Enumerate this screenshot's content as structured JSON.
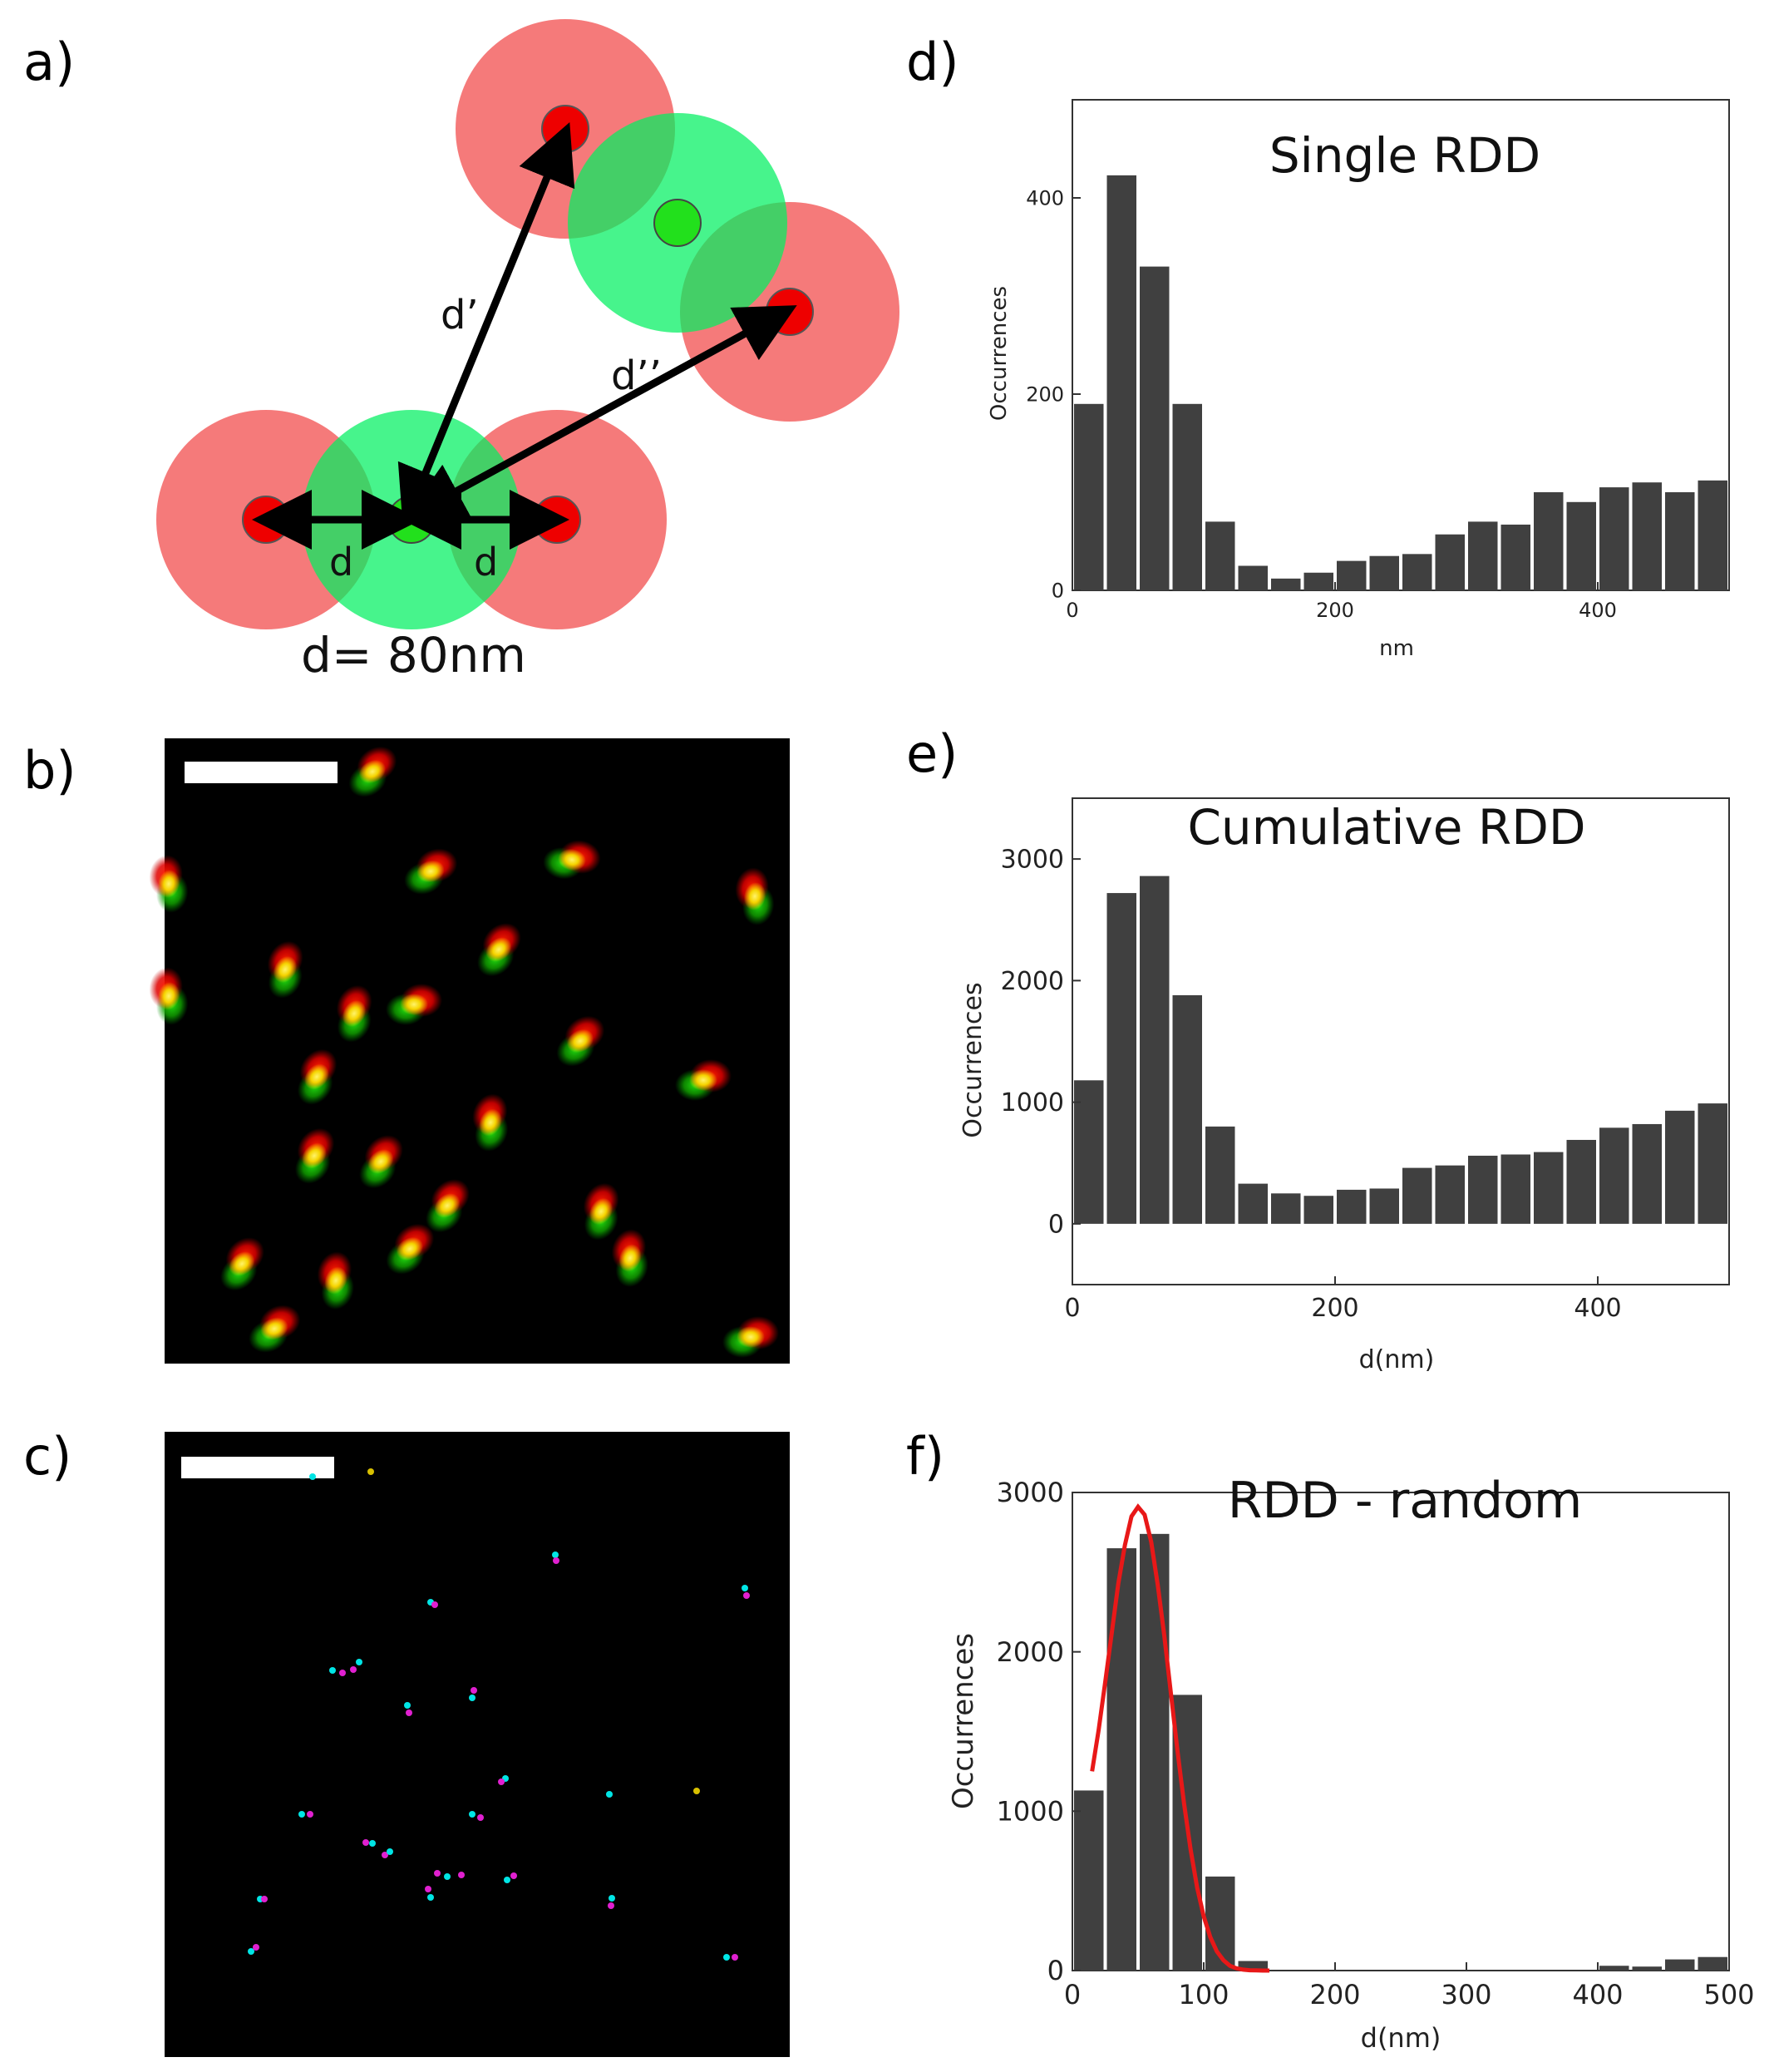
{
  "panel_labels": [
    "a)",
    "b)",
    "c)",
    "d)",
    "e)",
    "f)"
  ],
  "diagram": {
    "label_d_prime": "d’",
    "label_d_double_prime": "d’’",
    "label_d_left": "d",
    "label_d_right": "d",
    "caption": "d=  80nm",
    "colors": {
      "red_halo": "#f66e6e",
      "red_core": "#ee0000",
      "green_halo": "#11f56c",
      "green_core": "#22e01c",
      "arrow": "#000000"
    }
  },
  "micrographs": {
    "b": {
      "background": "#000000",
      "scale_bar_color": "#ffffff"
    },
    "c": {
      "background": "#000000",
      "scale_bar_color": "#ffffff",
      "dot_colors": [
        "#00e5e5",
        "#e020d0",
        "#d8c000"
      ]
    }
  },
  "chart_data": [
    {
      "panel": "d",
      "type": "bar",
      "title": "Single RDD",
      "xlabel": "nm",
      "ylabel": "Occurrences",
      "xlim": [
        0,
        500
      ],
      "ylim": [
        0,
        500
      ],
      "xticks": [
        "0",
        "200",
        "400"
      ],
      "yticks": [
        "0",
        "200",
        "400"
      ],
      "bin_width": 25,
      "bin_starts": [
        0,
        25,
        50,
        75,
        100,
        125,
        150,
        175,
        200,
        225,
        250,
        275,
        300,
        325,
        350,
        375,
        400,
        425,
        450,
        475
      ],
      "values": [
        190,
        423,
        330,
        190,
        70,
        25,
        12,
        18,
        30,
        35,
        37,
        57,
        70,
        67,
        100,
        90,
        105,
        110,
        100,
        112
      ],
      "bar_color": "#404040"
    },
    {
      "panel": "e",
      "type": "bar",
      "title": "Cumulative RDD",
      "xlabel": "d(nm)",
      "ylabel": "Occurrences",
      "xlim": [
        0,
        500
      ],
      "ylim": [
        -500,
        3500
      ],
      "xticks": [
        "0",
        "200",
        "400"
      ],
      "yticks": [
        "0",
        "1000",
        "2000",
        "3000"
      ],
      "bin_width": 25,
      "bin_starts": [
        0,
        25,
        50,
        75,
        100,
        125,
        150,
        175,
        200,
        225,
        250,
        275,
        300,
        325,
        350,
        375,
        400,
        425,
        450,
        475
      ],
      "values": [
        1180,
        2720,
        2860,
        1880,
        800,
        330,
        250,
        230,
        280,
        290,
        460,
        480,
        560,
        570,
        590,
        690,
        790,
        820,
        930,
        990
      ],
      "bar_color": "#404040"
    },
    {
      "panel": "f",
      "type": "bar",
      "title": "RDD - random",
      "xlabel": "d(nm)",
      "ylabel": "Occurrences",
      "xlim": [
        0,
        500
      ],
      "ylim": [
        0,
        3000
      ],
      "xticks": [
        "0",
        "100",
        "200",
        "300",
        "400",
        "500"
      ],
      "yticks": [
        "0",
        "1000",
        "2000",
        "3000"
      ],
      "bin_width": 25,
      "bin_starts": [
        0,
        25,
        50,
        75,
        100,
        125,
        150,
        175,
        200,
        225,
        250,
        275,
        300,
        325,
        350,
        375,
        400,
        425,
        450,
        475
      ],
      "values": [
        1130,
        2650,
        2740,
        1730,
        590,
        60,
        0,
        0,
        0,
        0,
        0,
        0,
        0,
        0,
        0,
        0,
        30,
        25,
        70,
        85
      ],
      "bar_color": "#404040",
      "fit": {
        "type": "gaussian",
        "x": [
          15,
          20,
          25,
          30,
          35,
          40,
          45,
          50,
          55,
          60,
          65,
          70,
          75,
          80,
          85,
          90,
          95,
          100,
          105,
          110,
          115,
          120,
          125,
          130,
          135,
          140,
          145,
          150
        ],
        "y": [
          1250,
          1510,
          1810,
          2120,
          2430,
          2670,
          2850,
          2910,
          2860,
          2690,
          2420,
          2100,
          1740,
          1380,
          1050,
          760,
          520,
          340,
          210,
          120,
          65,
          30,
          14,
          6,
          2,
          1,
          0,
          0
        ],
        "color": "#e81818"
      }
    }
  ]
}
